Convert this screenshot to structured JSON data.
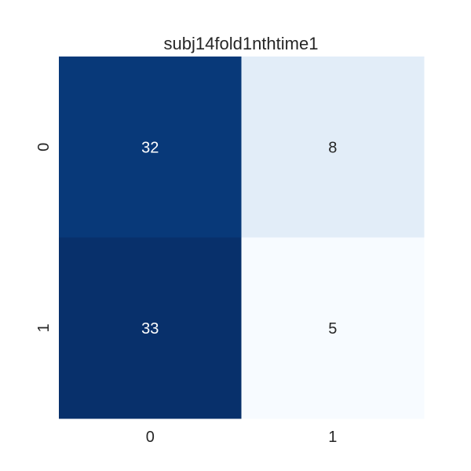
{
  "chart_data": {
    "type": "heatmap",
    "title": "subj14fold1nthtime1",
    "x_categories": [
      "0",
      "1"
    ],
    "y_categories": [
      "0",
      "1"
    ],
    "values": [
      [
        32,
        8
      ],
      [
        33,
        5
      ]
    ],
    "colormap": "Blues",
    "colorbar": false,
    "grid": false,
    "text_colors": {
      "dark_cell": "#ffffff",
      "light_cell": "#262626"
    }
  }
}
